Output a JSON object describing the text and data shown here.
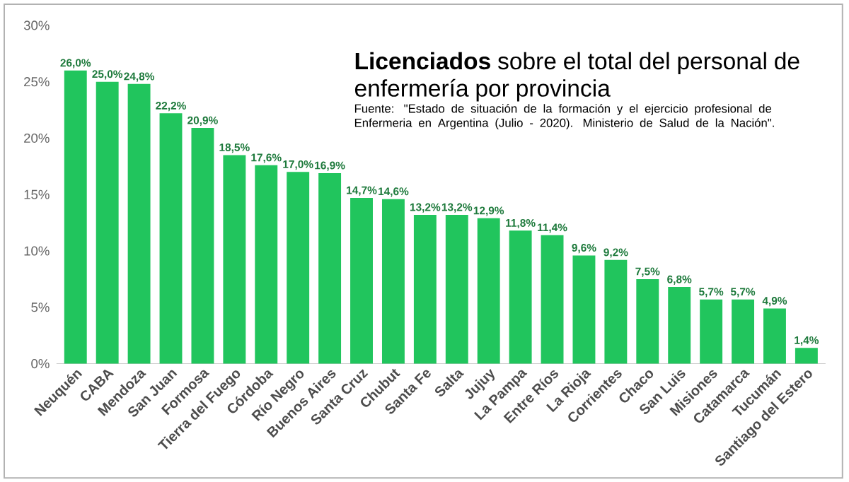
{
  "chart_data": {
    "type": "bar",
    "title": "**Licenciados** sobre el total del personal de enfermería por provincia",
    "annotations": [
      "Fuente: \"Estado de situación de la formación y el ejercicio profesional de Enfermeria en Argentina (Julio - 2020). Ministerio de Salud de la Nación\"."
    ],
    "categories": [
      "Neuquén",
      "CABA",
      "Mendoza",
      "San Juan",
      "Formosa",
      "Tierra del Fuego",
      "Córdoba",
      "Río Negro",
      "Buenos Aires",
      "Santa Cruz",
      "Chubut",
      "Santa Fe",
      "Salta",
      "Jujuy",
      "La Pampa",
      "Entre Ríos",
      "La Rioja",
      "Corrientes",
      "Chaco",
      "San Luis",
      "Misiones",
      "Catamarca",
      "Tucumán",
      "Santiago del Estero"
    ],
    "values": [
      26.0,
      25.0,
      24.8,
      22.2,
      20.9,
      18.5,
      17.6,
      17.0,
      16.9,
      14.7,
      14.6,
      13.2,
      13.2,
      12.9,
      11.8,
      11.4,
      9.6,
      9.2,
      7.5,
      6.8,
      5.7,
      5.7,
      4.9,
      1.4
    ],
    "value_labels": [
      "26,0%",
      "25,0%",
      "24,8%",
      "22,2%",
      "20,9%",
      "18,5%",
      "17,6%",
      "17,0%",
      "16,9%",
      "14,7%",
      "14,6%",
      "13,2%",
      "13,2%",
      "12,9%",
      "11,8%",
      "11,4%",
      "9,6%",
      "9,2%",
      "7,5%",
      "6,8%",
      "5,7%",
      "5,7%",
      "4,9%",
      "1,4%"
    ],
    "color": "#21c55d",
    "ylim": [
      0,
      30
    ],
    "yticks": [
      {
        "value": 0,
        "label": "0%"
      },
      {
        "value": 5,
        "label": "5%"
      },
      {
        "value": 10,
        "label": "10%"
      },
      {
        "value": 15,
        "label": "15%"
      },
      {
        "value": 20,
        "label": "20%"
      },
      {
        "value": 25,
        "label": "25%"
      },
      {
        "value": 30,
        "label": "30%"
      }
    ],
    "tick_labels": [
      "x",
      "y"
    ]
  }
}
